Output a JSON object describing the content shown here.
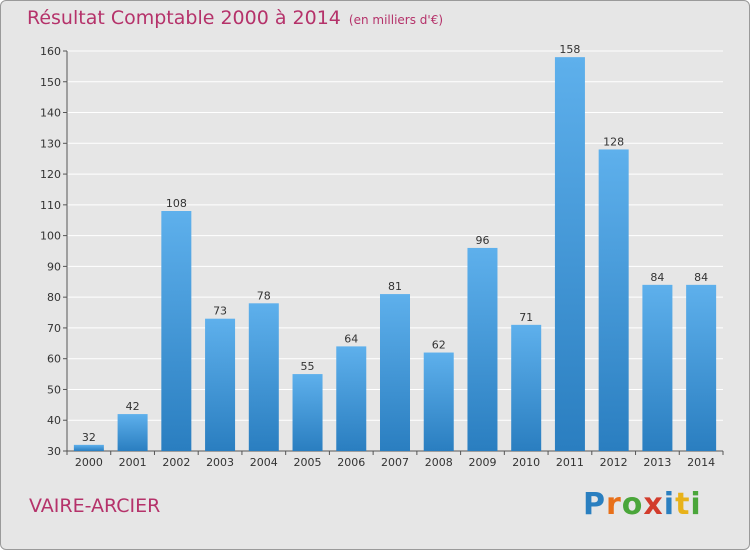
{
  "header": {
    "title": "Résultat Comptable 2000 à 2014",
    "subtitle": "(en milliers d'€)"
  },
  "footer": {
    "commune": "VAIRE-ARCIER"
  },
  "brand": {
    "letters": [
      "P",
      "r",
      "o",
      "x",
      "i",
      "t",
      "i"
    ],
    "colors": [
      "#2a7fc0",
      "#e8701a",
      "#4aa63a",
      "#d23c2c",
      "#2a7fc0",
      "#e8b21a",
      "#4aa63a"
    ]
  },
  "colors": {
    "bar_light": "#5eb0ec",
    "bar_dark": "#2a7ec0",
    "grid": "#ffffff",
    "plot_background": "#e6e6e6",
    "accent": "#b5326a"
  },
  "chart_data": {
    "type": "bar",
    "title": "Résultat Comptable 2000 à 2014",
    "subtitle": "(en milliers d'€)",
    "xlabel": "",
    "ylabel": "",
    "categories": [
      "2000",
      "2001",
      "2002",
      "2003",
      "2004",
      "2005",
      "2006",
      "2007",
      "2008",
      "2009",
      "2010",
      "2011",
      "2012",
      "2013",
      "2014"
    ],
    "values": [
      32,
      42,
      108,
      73,
      78,
      55,
      64,
      81,
      62,
      96,
      71,
      158,
      128,
      84,
      84
    ],
    "ylim": [
      30,
      160
    ],
    "yticks": [
      30,
      40,
      50,
      60,
      70,
      80,
      90,
      100,
      110,
      120,
      130,
      140,
      150,
      160
    ],
    "grid": true,
    "legend": "none"
  }
}
